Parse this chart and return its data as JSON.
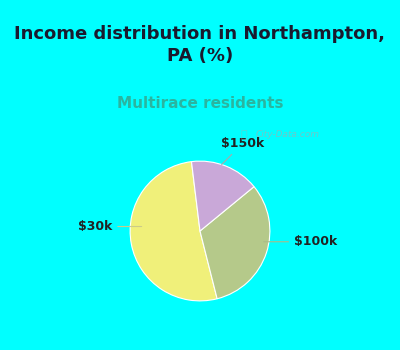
{
  "title": "Income distribution in Northampton,\nPA (%)",
  "subtitle": "Multirace residents",
  "title_color": "#1a1a2e",
  "subtitle_color": "#2ab5a0",
  "title_bg_color": "#00ffff",
  "pie_panel_color": "#e8f2ec",
  "slices": [
    {
      "label": "$30k",
      "value": 52,
      "color": "#f0f07a"
    },
    {
      "label": "$100k",
      "value": 32,
      "color": "#b5c98a"
    },
    {
      "label": "$150k",
      "value": 16,
      "color": "#c9a8d8"
    }
  ],
  "label_fontsize": 9,
  "title_fontsize": 13,
  "subtitle_fontsize": 11,
  "watermark": "City-Data.com",
  "startangle": 97
}
